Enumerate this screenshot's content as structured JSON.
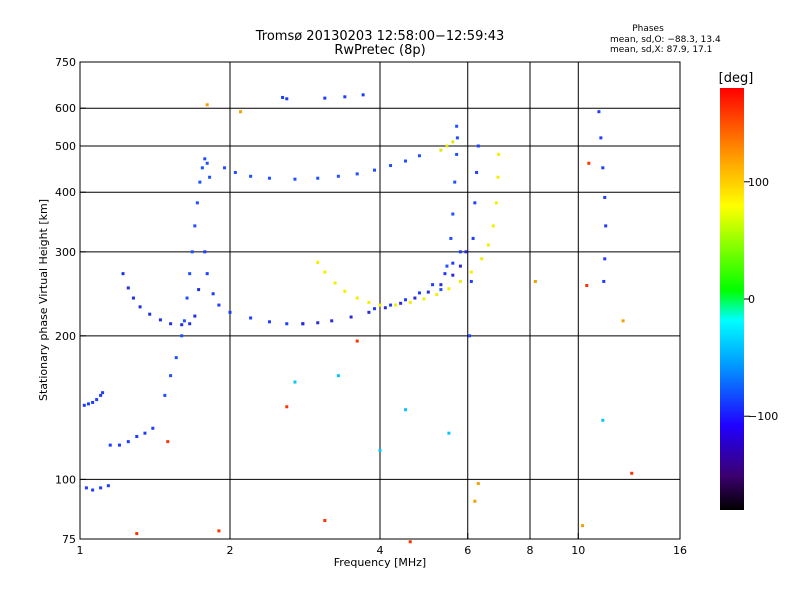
{
  "title": {
    "line1": "Tromsø 20130203 12:58:00−12:59:43",
    "line2": "RwPretec (8p)"
  },
  "phases_box": {
    "heading": "Phases",
    "o_line": "mean, sd,O: −88.3, 13.4",
    "x_line": "mean, sd,X:  87.9, 17.1"
  },
  "colorbar": {
    "label": "[deg]",
    "ticks": [
      {
        "value": 100,
        "label": "100"
      },
      {
        "value": 0,
        "label": "0"
      },
      {
        "value": -100,
        "label": "−100"
      }
    ],
    "range": [
      -180,
      180
    ]
  },
  "chart_data": {
    "type": "scatter",
    "xlabel": "Frequency [MHz]",
    "ylabel": "Stationary phase Virtual Height [km]",
    "xscale": "log",
    "yscale": "log",
    "xlim": [
      1,
      16
    ],
    "ylim": [
      75,
      750
    ],
    "xticks": [
      {
        "value": 1,
        "label": "1",
        "grid": false
      },
      {
        "value": 2,
        "label": "2",
        "grid": true
      },
      {
        "value": 4,
        "label": "4",
        "grid": true
      },
      {
        "value": 6,
        "label": "6",
        "grid": true
      },
      {
        "value": 8,
        "label": "8",
        "grid": true
      },
      {
        "value": 10,
        "label": "10",
        "grid": true
      },
      {
        "value": 16,
        "label": "16",
        "grid": false
      }
    ],
    "yticks": [
      {
        "value": 75,
        "label": "75",
        "grid": false
      },
      {
        "value": 100,
        "label": "100",
        "grid": true
      },
      {
        "value": 200,
        "label": "200",
        "grid": true
      },
      {
        "value": 300,
        "label": "300",
        "grid": true
      },
      {
        "value": 400,
        "label": "400",
        "grid": true
      },
      {
        "value": 500,
        "label": "500",
        "grid": true
      },
      {
        "value": 600,
        "label": "600",
        "grid": true
      },
      {
        "value": 750,
        "label": "750",
        "grid": false
      }
    ],
    "grid": true,
    "color_scale": "rainbow phase, degrees",
    "series": [
      {
        "color": "#1e3cff",
        "points": [
          [
            1.02,
            143
          ],
          [
            1.04,
            144
          ],
          [
            1.06,
            145
          ],
          [
            1.08,
            147
          ],
          [
            1.1,
            150
          ],
          [
            1.11,
            152
          ]
        ]
      },
      {
        "color": "#1e3cff",
        "points": [
          [
            1.03,
            96
          ],
          [
            1.06,
            95
          ],
          [
            1.1,
            96
          ],
          [
            1.14,
            97
          ]
        ]
      },
      {
        "color": "#1e3cff",
        "points": [
          [
            1.15,
            118
          ],
          [
            1.2,
            118
          ],
          [
            1.25,
            120
          ],
          [
            1.3,
            123
          ],
          [
            1.35,
            125
          ],
          [
            1.4,
            128
          ]
        ]
      },
      {
        "color": "#2030e0",
        "points": [
          [
            1.22,
            270
          ],
          [
            1.25,
            252
          ],
          [
            1.28,
            240
          ],
          [
            1.32,
            230
          ],
          [
            1.38,
            222
          ],
          [
            1.45,
            216
          ],
          [
            1.52,
            212
          ],
          [
            1.6,
            211
          ],
          [
            1.66,
            212
          ],
          [
            1.7,
            220
          ],
          [
            1.73,
            250
          ]
        ]
      },
      {
        "color": "#1e50ff",
        "points": [
          [
            1.48,
            150
          ],
          [
            1.52,
            165
          ],
          [
            1.56,
            180
          ],
          [
            1.6,
            200
          ],
          [
            1.62,
            215
          ],
          [
            1.64,
            240
          ],
          [
            1.66,
            270
          ],
          [
            1.68,
            300
          ],
          [
            1.7,
            340
          ],
          [
            1.72,
            380
          ],
          [
            1.74,
            420
          ],
          [
            1.76,
            450
          ],
          [
            1.78,
            470
          ],
          [
            1.8,
            460
          ],
          [
            1.82,
            430
          ]
        ]
      },
      {
        "color": "#1e3cff",
        "points": [
          [
            1.78,
            300
          ],
          [
            1.8,
            270
          ],
          [
            1.85,
            245
          ],
          [
            1.9,
            232
          ],
          [
            2.0,
            224
          ],
          [
            2.2,
            218
          ],
          [
            2.4,
            214
          ],
          [
            2.6,
            212
          ],
          [
            2.8,
            212
          ]
        ]
      },
      {
        "color": "#2a2ad8",
        "points": [
          [
            2.8,
            212
          ],
          [
            3.0,
            213
          ],
          [
            3.2,
            215
          ],
          [
            3.5,
            219
          ],
          [
            3.8,
            224
          ],
          [
            4.1,
            229
          ],
          [
            4.4,
            234
          ],
          [
            4.7,
            240
          ],
          [
            5.0,
            247
          ],
          [
            5.3,
            256
          ],
          [
            5.6,
            268
          ],
          [
            5.8,
            280
          ],
          [
            5.95,
            300
          ]
        ]
      },
      {
        "color": "#1e3cff",
        "points": [
          [
            3.9,
            228
          ],
          [
            4.2,
            232
          ],
          [
            4.5,
            238
          ],
          [
            4.8,
            246
          ],
          [
            5.1,
            256
          ],
          [
            5.4,
            270
          ],
          [
            5.6,
            284
          ],
          [
            5.8,
            300
          ]
        ]
      },
      {
        "color": "#1e50ff",
        "points": [
          [
            1.95,
            450
          ],
          [
            2.05,
            440
          ],
          [
            2.2,
            432
          ],
          [
            2.4,
            428
          ],
          [
            2.7,
            426
          ],
          [
            3.0,
            428
          ],
          [
            3.3,
            432
          ],
          [
            3.6,
            437
          ],
          [
            3.9,
            445
          ],
          [
            4.2,
            455
          ],
          [
            4.5,
            465
          ],
          [
            4.8,
            477
          ]
        ]
      },
      {
        "color": "#1e50ff",
        "points": [
          [
            5.3,
            250
          ],
          [
            5.45,
            280
          ],
          [
            5.55,
            320
          ],
          [
            5.6,
            360
          ],
          [
            5.65,
            420
          ],
          [
            5.7,
            480
          ],
          [
            5.72,
            520
          ],
          [
            5.7,
            550
          ]
        ]
      },
      {
        "color": "#2040ff",
        "points": [
          [
            6.05,
            200
          ],
          [
            6.1,
            260
          ],
          [
            6.15,
            320
          ],
          [
            6.2,
            380
          ],
          [
            6.25,
            440
          ],
          [
            6.3,
            500
          ]
        ]
      },
      {
        "color": "#f0f000",
        "points": [
          [
            3.0,
            285
          ],
          [
            3.1,
            272
          ],
          [
            3.25,
            258
          ],
          [
            3.4,
            248
          ],
          [
            3.6,
            240
          ],
          [
            3.8,
            235
          ],
          [
            4.0,
            232
          ],
          [
            4.3,
            232
          ],
          [
            4.6,
            235
          ],
          [
            4.9,
            239
          ],
          [
            5.2,
            244
          ],
          [
            5.5,
            251
          ],
          [
            5.8,
            260
          ],
          [
            6.1,
            272
          ],
          [
            6.4,
            290
          ],
          [
            6.6,
            310
          ],
          [
            6.75,
            340
          ],
          [
            6.85,
            380
          ],
          [
            6.9,
            430
          ],
          [
            6.92,
            480
          ]
        ]
      },
      {
        "color": "#e6e600",
        "points": [
          [
            5.3,
            490
          ],
          [
            5.45,
            500
          ],
          [
            5.6,
            510
          ]
        ]
      },
      {
        "color": "#1e3cff",
        "points": [
          [
            2.55,
            632
          ],
          [
            2.6,
            628
          ],
          [
            3.1,
            630
          ],
          [
            3.4,
            634
          ],
          [
            3.7,
            640
          ]
        ]
      },
      {
        "color": "#1e3cff",
        "points": [
          [
            11.0,
            590
          ],
          [
            11.1,
            520
          ],
          [
            11.2,
            450
          ],
          [
            11.3,
            390
          ],
          [
            11.35,
            340
          ],
          [
            11.3,
            290
          ],
          [
            11.25,
            260
          ]
        ]
      },
      {
        "color": "#ff3000",
        "points": [
          [
            1.3,
            77
          ],
          [
            1.5,
            120
          ],
          [
            1.9,
            78
          ],
          [
            2.6,
            142
          ],
          [
            3.1,
            82
          ],
          [
            3.6,
            195
          ],
          [
            4.6,
            74
          ],
          [
            10.5,
            460
          ],
          [
            10.4,
            255
          ],
          [
            12.8,
            103
          ]
        ]
      },
      {
        "color": "#00c8ff",
        "points": [
          [
            4.0,
            115
          ],
          [
            4.5,
            140
          ],
          [
            5.5,
            125
          ],
          [
            3.3,
            165
          ],
          [
            2.7,
            160
          ],
          [
            11.2,
            133
          ]
        ]
      },
      {
        "color": "#f0a000",
        "points": [
          [
            1.8,
            610
          ],
          [
            2.1,
            590
          ],
          [
            6.3,
            98
          ],
          [
            6.2,
            90
          ],
          [
            10.2,
            80
          ],
          [
            12.3,
            215
          ],
          [
            8.2,
            260
          ]
        ]
      }
    ]
  }
}
